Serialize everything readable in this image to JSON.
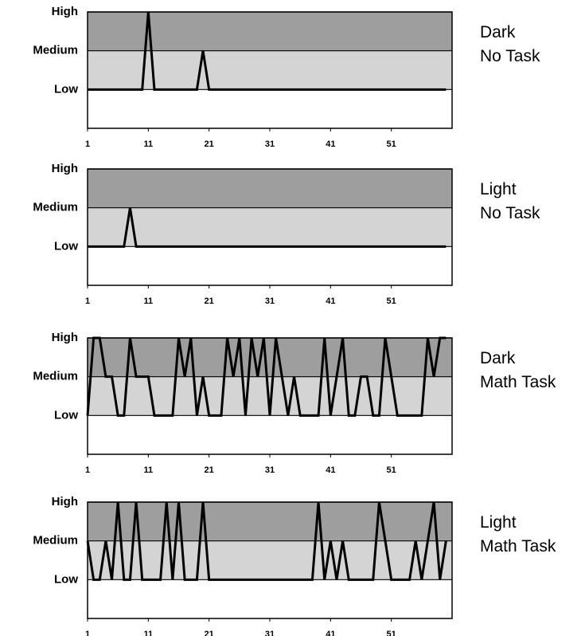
{
  "chart_data": [
    {
      "type": "line",
      "title_lines": [
        "Dark",
        "No Task"
      ],
      "color": "#000000",
      "band_colors": [
        "#ffffff",
        "#d4d4d4",
        "#9e9e9e"
      ],
      "x": [
        1,
        2,
        3,
        4,
        5,
        6,
        7,
        8,
        9,
        10,
        11,
        12,
        13,
        14,
        15,
        16,
        17,
        18,
        19,
        20,
        21,
        22,
        23,
        24,
        25,
        26,
        27,
        28,
        29,
        30,
        31,
        32,
        33,
        34,
        35,
        36,
        37,
        38,
        39,
        40,
        41,
        42,
        43,
        44,
        45,
        46,
        47,
        48,
        49,
        50,
        51,
        52,
        53,
        54,
        55,
        56,
        57,
        58,
        59,
        60
      ],
      "values": [
        1,
        1,
        1,
        1,
        1,
        1,
        1,
        1,
        1,
        1,
        3,
        1,
        1,
        1,
        1,
        1,
        1,
        1,
        1,
        2,
        1,
        1,
        1,
        1,
        1,
        1,
        1,
        1,
        1,
        1,
        1,
        1,
        1,
        1,
        1,
        1,
        1,
        1,
        1,
        1,
        1,
        1,
        1,
        1,
        1,
        1,
        1,
        1,
        1,
        1,
        1,
        1,
        1,
        1,
        1,
        1,
        1,
        1,
        1,
        1
      ],
      "xlim": [
        1,
        61
      ],
      "xticks": [
        1,
        11,
        21,
        31,
        41,
        51
      ],
      "ylim": [
        0,
        3
      ],
      "yticks": [
        {
          "value": 1,
          "label": "Low"
        },
        {
          "value": 2,
          "label": "Medium"
        },
        {
          "value": 3,
          "label": "High"
        }
      ]
    },
    {
      "type": "line",
      "title_lines": [
        "Light",
        "No Task"
      ],
      "color": "#000000",
      "band_colors": [
        "#ffffff",
        "#d4d4d4",
        "#9e9e9e"
      ],
      "x": [
        1,
        2,
        3,
        4,
        5,
        6,
        7,
        8,
        9,
        10,
        11,
        12,
        13,
        14,
        15,
        16,
        17,
        18,
        19,
        20,
        21,
        22,
        23,
        24,
        25,
        26,
        27,
        28,
        29,
        30,
        31,
        32,
        33,
        34,
        35,
        36,
        37,
        38,
        39,
        40,
        41,
        42,
        43,
        44,
        45,
        46,
        47,
        48,
        49,
        50,
        51,
        52,
        53,
        54,
        55,
        56,
        57,
        58,
        59,
        60
      ],
      "values": [
        1,
        1,
        1,
        1,
        1,
        1,
        1,
        2,
        1,
        1,
        1,
        1,
        1,
        1,
        1,
        1,
        1,
        1,
        1,
        1,
        1,
        1,
        1,
        1,
        1,
        1,
        1,
        1,
        1,
        1,
        1,
        1,
        1,
        1,
        1,
        1,
        1,
        1,
        1,
        1,
        1,
        1,
        1,
        1,
        1,
        1,
        1,
        1,
        1,
        1,
        1,
        1,
        1,
        1,
        1,
        1,
        1,
        1,
        1,
        1
      ],
      "xlim": [
        1,
        61
      ],
      "xticks": [
        1,
        11,
        21,
        31,
        41,
        51
      ],
      "ylim": [
        0,
        3
      ],
      "yticks": [
        {
          "value": 1,
          "label": "Low"
        },
        {
          "value": 2,
          "label": "Medium"
        },
        {
          "value": 3,
          "label": "High"
        }
      ]
    },
    {
      "type": "line",
      "title_lines": [
        "Dark",
        "Math Task"
      ],
      "color": "#000000",
      "band_colors": [
        "#ffffff",
        "#d4d4d4",
        "#9e9e9e"
      ],
      "x": [
        1,
        2,
        3,
        4,
        5,
        6,
        7,
        8,
        9,
        10,
        11,
        12,
        13,
        14,
        15,
        16,
        17,
        18,
        19,
        20,
        21,
        22,
        23,
        24,
        25,
        26,
        27,
        28,
        29,
        30,
        31,
        32,
        33,
        34,
        35,
        36,
        37,
        38,
        39,
        40,
        41,
        42,
        43,
        44,
        45,
        46,
        47,
        48,
        49,
        50,
        51,
        52,
        53,
        54,
        55,
        56,
        57,
        58,
        59,
        60
      ],
      "values": [
        1,
        3,
        3,
        2,
        2,
        1,
        1,
        3,
        2,
        2,
        2,
        1,
        1,
        1,
        1,
        3,
        2,
        3,
        1,
        2,
        1,
        1,
        1,
        3,
        2,
        3,
        1,
        3,
        2,
        3,
        1,
        3,
        2,
        1,
        2,
        1,
        1,
        1,
        1,
        3,
        1,
        2,
        3,
        1,
        1,
        2,
        2,
        1,
        1,
        3,
        2,
        1,
        1,
        1,
        1,
        1,
        3,
        2,
        3,
        3
      ],
      "xlim": [
        1,
        61
      ],
      "xticks": [
        1,
        11,
        21,
        31,
        41,
        51
      ],
      "ylim": [
        0,
        3
      ],
      "yticks": [
        {
          "value": 1,
          "label": "Low"
        },
        {
          "value": 2,
          "label": "Medium"
        },
        {
          "value": 3,
          "label": "High"
        }
      ]
    },
    {
      "type": "line",
      "title_lines": [
        "Light",
        "Math Task"
      ],
      "color": "#000000",
      "band_colors": [
        "#ffffff",
        "#d4d4d4",
        "#9e9e9e"
      ],
      "x": [
        1,
        2,
        3,
        4,
        5,
        6,
        7,
        8,
        9,
        10,
        11,
        12,
        13,
        14,
        15,
        16,
        17,
        18,
        19,
        20,
        21,
        22,
        23,
        24,
        25,
        26,
        27,
        28,
        29,
        30,
        31,
        32,
        33,
        34,
        35,
        36,
        37,
        38,
        39,
        40,
        41,
        42,
        43,
        44,
        45,
        46,
        47,
        48,
        49,
        50,
        51,
        52,
        53,
        54,
        55,
        56,
        57,
        58,
        59,
        60
      ],
      "values": [
        2,
        1,
        1,
        2,
        1,
        3,
        1,
        1,
        3,
        1,
        1,
        1,
        1,
        3,
        1,
        3,
        1,
        1,
        1,
        3,
        1,
        1,
        1,
        1,
        1,
        1,
        1,
        1,
        1,
        1,
        1,
        1,
        1,
        1,
        1,
        1,
        1,
        1,
        3,
        1,
        2,
        1,
        2,
        1,
        1,
        1,
        1,
        1,
        3,
        2,
        1,
        1,
        1,
        1,
        2,
        1,
        2,
        3,
        1,
        2
      ],
      "xlim": [
        1,
        61
      ],
      "xticks": [
        1,
        11,
        21,
        31,
        41,
        51
      ],
      "ylim": [
        0,
        3
      ],
      "yticks": [
        {
          "value": 1,
          "label": "Low"
        },
        {
          "value": 2,
          "label": "Medium"
        },
        {
          "value": 3,
          "label": "High"
        }
      ]
    }
  ]
}
